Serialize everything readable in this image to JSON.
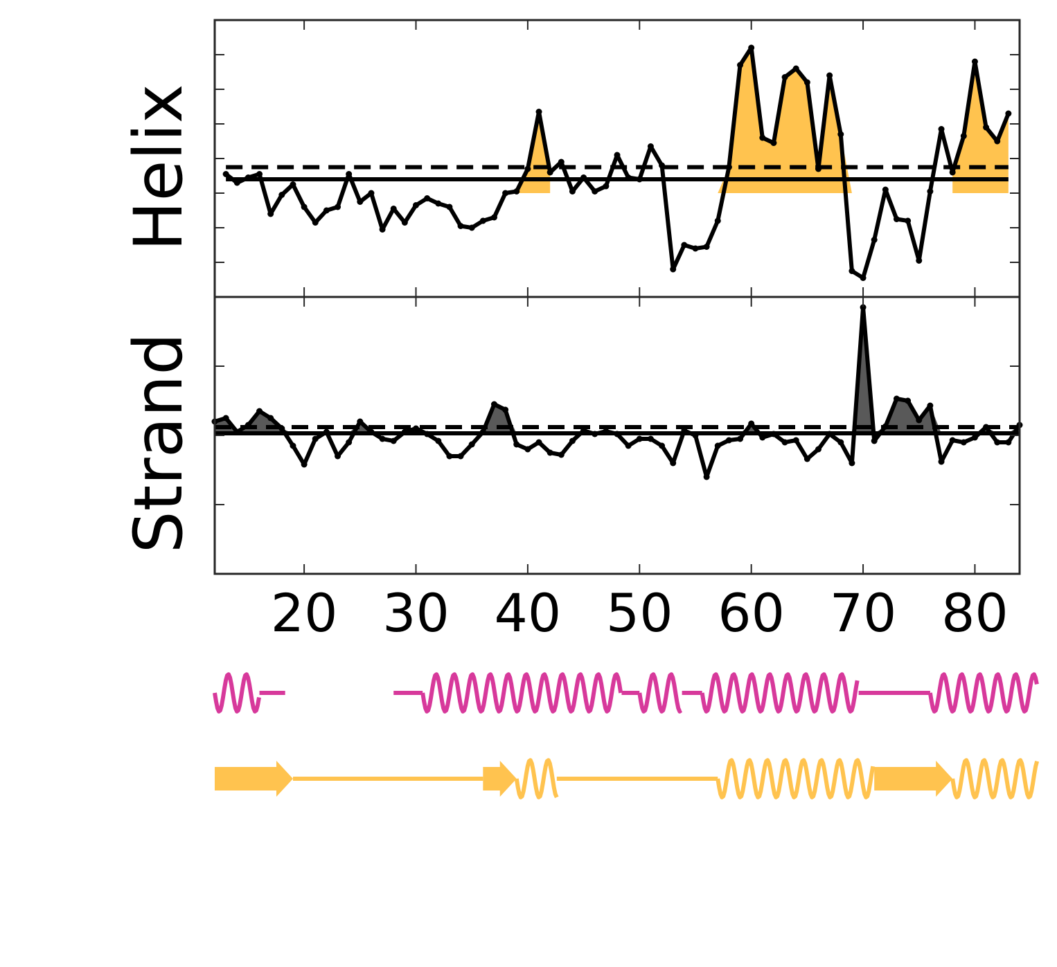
{
  "colors": {
    "data_line": "#000000",
    "helix_fill": "#FFC34F",
    "strand_fill": "#595959",
    "track_magenta": "#D7399B",
    "track_gold": "#FFC34F",
    "frame": "#262626"
  },
  "chart_data": [
    {
      "type": "line",
      "panel": "helix",
      "ylabel": "Helix",
      "xlim": [
        12,
        84
      ],
      "ylim": [
        -3,
        5
      ],
      "x": [
        13,
        14,
        15,
        16,
        17,
        18,
        19,
        20,
        21,
        22,
        23,
        24,
        25,
        26,
        27,
        28,
        29,
        30,
        31,
        32,
        33,
        34,
        35,
        36,
        37,
        38,
        39,
        40,
        41,
        42,
        43,
        44,
        45,
        46,
        47,
        48,
        49,
        50,
        51,
        52,
        53,
        54,
        55,
        56,
        57,
        58,
        59,
        60,
        61,
        62,
        63,
        64,
        65,
        66,
        67,
        68,
        69,
        70,
        71,
        72,
        73,
        74,
        75,
        76,
        77,
        78,
        79,
        80,
        81,
        82,
        83
      ],
      "y": [
        0.55,
        0.3,
        0.45,
        0.55,
        -0.6,
        -0.05,
        0.25,
        -0.4,
        -0.85,
        -0.5,
        -0.4,
        0.55,
        -0.25,
        0.0,
        -1.05,
        -0.45,
        -0.85,
        -0.35,
        -0.15,
        -0.3,
        -0.4,
        -0.95,
        -1.0,
        -0.8,
        -0.7,
        0.0,
        0.05,
        0.7,
        2.35,
        0.6,
        0.9,
        0.05,
        0.45,
        0.05,
        0.2,
        1.1,
        0.45,
        0.4,
        1.35,
        0.8,
        -2.2,
        -1.5,
        -1.6,
        -1.55,
        -0.8,
        0.75,
        3.7,
        4.2,
        1.6,
        1.45,
        3.35,
        3.6,
        3.2,
        0.7,
        3.4,
        1.7,
        -2.25,
        -2.45,
        -1.35,
        0.1,
        -0.75,
        -0.8,
        -1.95,
        0.05,
        1.85,
        0.6,
        1.65,
        3.8,
        1.9,
        1.5,
        2.3
      ],
      "solid_threshold": 0.4,
      "dashed_threshold": 0.75,
      "fill_baseline": 0.0,
      "filled_segments": [
        [
          39,
          42
        ],
        [
          57,
          69
        ],
        [
          78,
          83
        ]
      ],
      "ticks_x": [
        20,
        30,
        40,
        50,
        60,
        70,
        80
      ],
      "tick_labels_x": []
    },
    {
      "type": "line",
      "panel": "strand",
      "ylabel": "Strand",
      "xlim": [
        12,
        84
      ],
      "ylim": [
        -1,
        3
      ],
      "x": [
        12,
        13,
        14,
        15,
        16,
        17,
        18,
        19,
        20,
        21,
        22,
        23,
        24,
        25,
        26,
        27,
        28,
        29,
        30,
        31,
        32,
        33,
        34,
        35,
        36,
        37,
        38,
        39,
        40,
        41,
        42,
        43,
        44,
        45,
        46,
        47,
        48,
        49,
        50,
        51,
        52,
        53,
        54,
        55,
        56,
        57,
        58,
        59,
        60,
        61,
        62,
        63,
        64,
        65,
        66,
        67,
        68,
        69,
        70,
        71,
        72,
        73,
        74,
        75,
        76,
        77,
        78,
        79,
        80,
        81,
        82,
        83,
        84
      ],
      "y": [
        1.2,
        1.25,
        1.05,
        1.15,
        1.35,
        1.25,
        1.1,
        0.85,
        0.58,
        0.95,
        1.05,
        0.7,
        0.9,
        1.2,
        1.05,
        0.95,
        0.92,
        1.05,
        1.1,
        1.02,
        0.92,
        0.7,
        0.7,
        0.87,
        1.05,
        1.45,
        1.37,
        0.87,
        0.8,
        0.9,
        0.75,
        0.72,
        0.92,
        1.07,
        1.02,
        1.06,
        1.02,
        0.85,
        0.95,
        0.95,
        0.85,
        0.6,
        1.07,
        1.0,
        0.4,
        0.85,
        0.93,
        0.95,
        1.17,
        0.97,
        1.02,
        0.9,
        0.93,
        0.66,
        0.8,
        1.02,
        0.9,
        0.6,
        2.85,
        0.92,
        1.13,
        1.53,
        1.5,
        1.22,
        1.43,
        0.62,
        0.93,
        0.9,
        0.97,
        1.12,
        0.9,
        0.9,
        1.15
      ],
      "solid_threshold": 1.03,
      "dashed_threshold": 1.12,
      "fill_baseline": 1.03,
      "ticks_x": [
        20,
        30,
        40,
        50,
        60,
        70,
        80
      ],
      "tick_labels_x": [
        "20",
        "30",
        "40",
        "50",
        "60",
        "70",
        "80"
      ]
    }
  ],
  "secondary_structure_tracks": [
    {
      "name": "magenta",
      "color_key": "track_magenta",
      "segments": [
        {
          "kind": "helix",
          "start": 12.0,
          "end": 16.0
        },
        {
          "kind": "coil",
          "start": 16.0,
          "end": 18.3
        },
        {
          "kind": "gap",
          "start": 18.3,
          "end": 28.0
        },
        {
          "kind": "coil",
          "start": 28.0,
          "end": 30.6
        },
        {
          "kind": "helix",
          "start": 30.6,
          "end": 48.4
        },
        {
          "kind": "coil",
          "start": 48.4,
          "end": 50.0
        },
        {
          "kind": "helix",
          "start": 50.0,
          "end": 53.8
        },
        {
          "kind": "coil",
          "start": 53.8,
          "end": 55.6
        },
        {
          "kind": "helix",
          "start": 55.6,
          "end": 69.6
        },
        {
          "kind": "coil",
          "start": 69.6,
          "end": 76.0
        },
        {
          "kind": "helix",
          "start": 76.0,
          "end": 85.6
        }
      ]
    },
    {
      "name": "gold",
      "color_key": "track_gold",
      "segments": [
        {
          "kind": "strand",
          "start": 12.0,
          "end": 19.0
        },
        {
          "kind": "coil",
          "start": 19.0,
          "end": 36.0
        },
        {
          "kind": "strand",
          "start": 36.0,
          "end": 39.0
        },
        {
          "kind": "helix",
          "start": 39.0,
          "end": 42.6
        },
        {
          "kind": "coil",
          "start": 42.6,
          "end": 57.0
        },
        {
          "kind": "helix",
          "start": 57.0,
          "end": 71.0
        },
        {
          "kind": "strand",
          "start": 71.0,
          "end": 78.0
        },
        {
          "kind": "helix",
          "start": 78.0,
          "end": 85.6
        }
      ]
    }
  ]
}
